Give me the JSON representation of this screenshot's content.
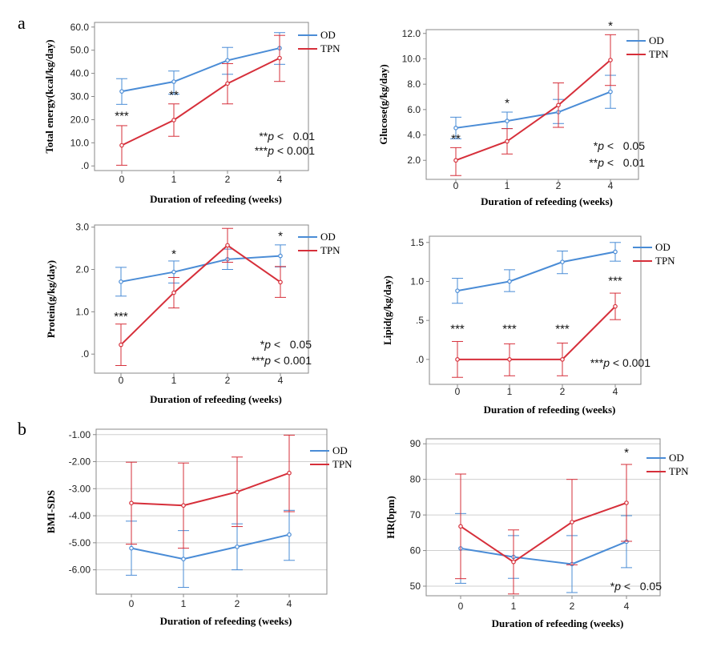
{
  "figure": {
    "panel_labels": [
      "a",
      "b"
    ],
    "colors": {
      "OD": "#4a8cd6",
      "TPN": "#d62f3a"
    }
  },
  "chart_data": [
    {
      "id": "energy",
      "type": "line",
      "title": "",
      "xlabel": "Duration of refeeding (weeks)",
      "ylabel": "Total energy(kcal/kg/day)",
      "categories": [
        "0",
        "1",
        "2",
        "4"
      ],
      "yticks": [
        0,
        10,
        20,
        30,
        40,
        50,
        60
      ],
      "ytick_labels": [
        ".0",
        "10.0",
        "20.0",
        "30.0",
        "40.0",
        "50.0",
        "60.0"
      ],
      "ylim": [
        -2,
        62
      ],
      "grid": false,
      "legend": "top-right",
      "series": [
        {
          "name": "OD",
          "values": [
            32.2,
            36.4,
            45.6,
            50.9
          ],
          "err_low": [
            26.6,
            31.0,
            39.6,
            43.9
          ],
          "err_high": [
            37.7,
            41.0,
            51.2,
            57.6
          ]
        },
        {
          "name": "TPN",
          "values": [
            8.9,
            19.8,
            35.6,
            46.6
          ],
          "err_low": [
            0.3,
            12.8,
            26.8,
            36.5
          ],
          "err_high": [
            17.4,
            26.8,
            44.2,
            56.4
          ]
        }
      ],
      "significance": [
        {
          "category": "0",
          "y": 20,
          "text": "***"
        },
        {
          "category": "1",
          "y": 29,
          "text": "**"
        }
      ],
      "notes": [
        "**p <   0.01",
        "***p < 0.001"
      ]
    },
    {
      "id": "glucose",
      "type": "line",
      "title": "",
      "xlabel": "Duration of refeeding (weeks)",
      "ylabel": "Glucose(g/kg/day)",
      "categories": [
        "0",
        "1",
        "2",
        "4"
      ],
      "yticks": [
        2,
        4,
        6,
        8,
        10,
        12
      ],
      "ytick_labels": [
        "2.0",
        "4.0",
        "6.0",
        "8.0",
        "10.0",
        "12.0"
      ],
      "ylim": [
        0.5,
        12.3
      ],
      "grid": false,
      "legend": "top-right",
      "series": [
        {
          "name": "OD",
          "values": [
            4.55,
            5.1,
            5.8,
            7.4
          ],
          "err_low": [
            3.7,
            4.5,
            4.9,
            6.1
          ],
          "err_high": [
            5.4,
            5.8,
            6.8,
            8.7
          ]
        },
        {
          "name": "TPN",
          "values": [
            2.0,
            3.5,
            6.35,
            9.9
          ],
          "err_low": [
            0.8,
            2.5,
            4.6,
            7.9
          ],
          "err_high": [
            3.0,
            4.5,
            8.1,
            11.9
          ]
        }
      ],
      "significance": [
        {
          "category": "0",
          "y": 3.4,
          "text": "**"
        },
        {
          "category": "1",
          "y": 6.2,
          "text": "*"
        },
        {
          "category": "4",
          "y": 12.3,
          "text": "*"
        }
      ],
      "notes": [
        "*p <   0.05",
        "**p <   0.01"
      ]
    },
    {
      "id": "protein",
      "type": "line",
      "title": "",
      "xlabel": "Duration of refeeding (weeks)",
      "ylabel": "Protein(g/kg/day)",
      "categories": [
        "0",
        "1",
        "2",
        "4"
      ],
      "yticks": [
        0,
        1,
        2,
        3
      ],
      "ytick_labels": [
        ".0",
        "1.0",
        "2.0",
        "3.0"
      ],
      "ylim": [
        -0.45,
        3.05
      ],
      "grid": false,
      "legend": "top-right",
      "series": [
        {
          "name": "OD",
          "values": [
            1.71,
            1.94,
            2.24,
            2.32
          ],
          "err_low": [
            1.37,
            1.68,
            2.0,
            2.06
          ],
          "err_high": [
            2.05,
            2.2,
            2.48,
            2.58
          ]
        },
        {
          "name": "TPN",
          "values": [
            0.22,
            1.45,
            2.57,
            1.7
          ],
          "err_low": [
            -0.27,
            1.09,
            2.17,
            1.34
          ],
          "err_high": [
            0.71,
            1.81,
            2.97,
            2.07
          ]
        }
      ],
      "significance": [
        {
          "category": "0",
          "y": 0.8,
          "text": "***"
        },
        {
          "category": "1",
          "y": 2.27,
          "text": "*"
        },
        {
          "category": "4",
          "y": 2.7,
          "text": "*"
        }
      ],
      "notes": [
        "*p <   0.05",
        "***p < 0.001"
      ]
    },
    {
      "id": "lipid",
      "type": "line",
      "title": "",
      "xlabel": "Duration of refeeding (weeks)",
      "ylabel": "Lipid(g/kg/day)",
      "categories": [
        "0",
        "1",
        "2",
        "4"
      ],
      "yticks": [
        0,
        0.5,
        1,
        1.5
      ],
      "ytick_labels": [
        ".0",
        ".5",
        "1.0",
        "1.5"
      ],
      "ylim": [
        -0.32,
        1.58
      ],
      "grid": false,
      "legend": "top-right",
      "series": [
        {
          "name": "OD",
          "values": [
            0.88,
            1.0,
            1.25,
            1.38
          ],
          "err_low": [
            0.72,
            0.87,
            1.1,
            1.26
          ],
          "err_high": [
            1.04,
            1.15,
            1.39,
            1.5
          ]
        },
        {
          "name": "TPN",
          "values": [
            0.0,
            0.0,
            0.0,
            0.68
          ],
          "err_low": [
            -0.23,
            -0.21,
            -0.21,
            0.51
          ],
          "err_high": [
            0.23,
            0.2,
            0.21,
            0.85
          ]
        }
      ],
      "significance": [
        {
          "category": "0",
          "y": 0.34,
          "text": "***"
        },
        {
          "category": "1",
          "y": 0.34,
          "text": "***"
        },
        {
          "category": "2",
          "y": 0.34,
          "text": "***"
        },
        {
          "category": "4",
          "y": 0.96,
          "text": "***"
        }
      ],
      "notes": [
        "***p < 0.001"
      ]
    },
    {
      "id": "bmi",
      "type": "line",
      "title": "",
      "xlabel": "Duration of refeeding (weeks)",
      "ylabel": "BMI-SDS",
      "categories": [
        "0",
        "1",
        "2",
        "4"
      ],
      "yticks": [
        -6,
        -5,
        -4,
        -3,
        -2,
        -1
      ],
      "ytick_labels": [
        "-6.00",
        "-5.00",
        "-4.00",
        "-3.00",
        "-2.00",
        "-1.00"
      ],
      "ylim": [
        -6.9,
        -0.8
      ],
      "grid": true,
      "legend": "top-right",
      "series": [
        {
          "name": "OD",
          "values": [
            -5.2,
            -5.6,
            -5.15,
            -4.7
          ],
          "err_low": [
            -6.2,
            -6.65,
            -6.0,
            -5.65
          ],
          "err_high": [
            -4.2,
            -4.55,
            -4.3,
            -3.8
          ]
        },
        {
          "name": "TPN",
          "values": [
            -3.53,
            -3.62,
            -3.12,
            -2.42
          ],
          "err_low": [
            -5.05,
            -5.2,
            -4.4,
            -3.85
          ],
          "err_high": [
            -2.02,
            -2.05,
            -1.83,
            -1.02
          ]
        }
      ],
      "significance": [],
      "notes": []
    },
    {
      "id": "hr",
      "type": "line",
      "title": "",
      "xlabel": "Duration of refeeding (weeks)",
      "ylabel": "HR(bpm)",
      "categories": [
        "0",
        "1",
        "2",
        "4"
      ],
      "yticks": [
        50,
        60,
        70,
        80,
        90
      ],
      "ytick_labels": [
        "50",
        "60",
        "70",
        "80",
        "90"
      ],
      "ylim": [
        47.3,
        91.4
      ],
      "grid": true,
      "legend": "top-right",
      "series": [
        {
          "name": "OD",
          "values": [
            60.6,
            58.2,
            56.2,
            62.5
          ],
          "err_low": [
            50.8,
            52.2,
            48.2,
            55.2
          ],
          "err_high": [
            70.4,
            64.2,
            64.2,
            69.8
          ]
        },
        {
          "name": "TPN",
          "values": [
            66.8,
            56.8,
            68.0,
            73.4
          ],
          "err_low": [
            52.1,
            47.8,
            56.0,
            62.6
          ],
          "err_high": [
            81.5,
            65.8,
            80.0,
            84.2
          ]
        }
      ],
      "significance": [
        {
          "category": "4",
          "y": 86.5,
          "text": "*"
        }
      ],
      "notes": [
        "*p <   0.05"
      ]
    }
  ]
}
